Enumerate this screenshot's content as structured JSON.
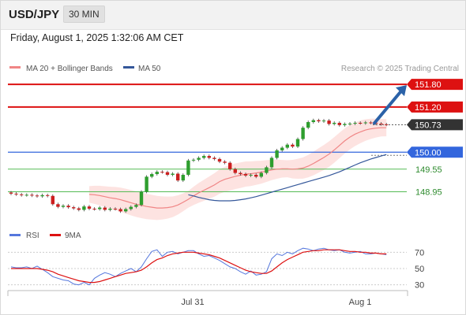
{
  "header": {
    "symbol": "USD/JPY",
    "timeframe": "30 MIN",
    "datetime": "Friday, August 1, 2025 1:32:06 AM CET"
  },
  "legend": {
    "ma20_label": "MA 20 + Bollinger Bands",
    "ma50_label": "MA 50",
    "copyright": "Research © 2025 Trading Central"
  },
  "colors": {
    "resistance": "#dd1111",
    "support_pivot": "#3366dd",
    "support": "#55bb55",
    "support_text": "#2e8b2e",
    "candle_up": "#2e9e2e",
    "candle_down": "#cc1f1f",
    "ma20": "#f08585",
    "ma50": "#34579a",
    "bollinger_fill": "#fde0de",
    "rsi": "#5577dd",
    "rsi_ma": "#dd1111",
    "arrow": "#2b62a8"
  },
  "chart_data": [
    {
      "type": "candlestick",
      "x_axis_labels": [
        "Jul 31",
        "Aug 1"
      ],
      "last_price": 150.73,
      "levels": [
        {
          "label": "151.80",
          "value": 151.8,
          "kind": "resistance"
        },
        {
          "label": "151.20",
          "value": 151.2,
          "kind": "resistance"
        },
        {
          "label": "150.73",
          "value": 150.73,
          "kind": "last"
        },
        {
          "label": "150.00",
          "value": 150.0,
          "kind": "pivot"
        },
        {
          "label": "149.55",
          "value": 149.55,
          "kind": "support"
        },
        {
          "label": "148.95",
          "value": 148.95,
          "kind": "support"
        }
      ],
      "close": [
        148.9,
        148.88,
        148.86,
        148.87,
        148.85,
        148.83,
        148.86,
        148.84,
        148.62,
        148.55,
        148.58,
        148.54,
        148.51,
        148.47,
        148.56,
        148.5,
        148.49,
        148.53,
        148.47,
        148.5,
        148.49,
        148.43,
        148.49,
        148.55,
        148.6,
        148.95,
        149.35,
        149.42,
        149.48,
        149.47,
        149.4,
        149.43,
        149.25,
        149.4,
        149.78,
        149.8,
        149.85,
        149.9,
        149.85,
        149.82,
        149.75,
        149.72,
        149.55,
        149.45,
        149.42,
        149.38,
        149.4,
        149.35,
        149.45,
        149.6,
        149.85,
        150.05,
        150.12,
        150.2,
        150.15,
        150.35,
        150.65,
        150.8,
        150.85,
        150.82,
        150.84,
        150.75,
        150.78,
        150.72,
        150.75,
        150.76,
        150.78,
        150.77,
        150.79,
        150.78,
        150.76,
        150.74,
        150.73
      ],
      "ma20": [
        148.88,
        148.87,
        148.85,
        148.82,
        148.79,
        148.77,
        148.74,
        148.7,
        148.66,
        148.62,
        148.59,
        148.56,
        148.54,
        148.52,
        148.52,
        148.53,
        148.55,
        148.6,
        148.67,
        148.75,
        148.84,
        148.92,
        148.99,
        149.06,
        149.13,
        149.22,
        149.28,
        149.32,
        149.36,
        149.39,
        149.42,
        149.43,
        149.45,
        149.47,
        149.5,
        149.53,
        149.55,
        149.56,
        149.56,
        149.55,
        149.56,
        149.58,
        149.63,
        149.7,
        149.78,
        149.86,
        149.95,
        150.06,
        150.18,
        150.3,
        150.4,
        150.48,
        150.54,
        150.59,
        150.62,
        150.64,
        150.65,
        150.65
      ],
      "ma50": [
        148.87,
        148.84,
        148.8,
        148.77,
        148.74,
        148.72,
        148.71,
        148.71,
        148.71,
        148.72,
        148.74,
        148.76,
        148.79,
        148.82,
        148.86,
        148.9,
        148.94,
        148.98,
        149.02,
        149.06,
        149.1,
        149.14,
        149.18,
        149.22,
        149.26,
        149.3,
        149.34,
        149.38,
        149.43,
        149.48,
        149.54,
        149.6,
        149.66,
        149.72,
        149.77,
        149.82,
        149.86,
        149.9,
        149.94
      ],
      "y_range": [
        148.25,
        151.95
      ]
    },
    {
      "type": "line",
      "legend": [
        "RSI",
        "9MA"
      ],
      "y_ticks": [
        70,
        50,
        30
      ],
      "y_range": [
        20,
        80
      ],
      "rsi": [
        52,
        51,
        51,
        52,
        50,
        53,
        49,
        45,
        40,
        38,
        36,
        35,
        31,
        30,
        33,
        30,
        38,
        42,
        45,
        43,
        40,
        44,
        47,
        50,
        46,
        52,
        62,
        71,
        73,
        65,
        70,
        71,
        68,
        70,
        72,
        72,
        68,
        65,
        66,
        63,
        60,
        56,
        52,
        50,
        46,
        43,
        47,
        42,
        43,
        46,
        62,
        68,
        66,
        70,
        68,
        72,
        75,
        74,
        72,
        74,
        75,
        73,
        72,
        73,
        70,
        69,
        70,
        71,
        68,
        68,
        69,
        68,
        67
      ],
      "rsi_ma": [
        50,
        50,
        50,
        50,
        50,
        50,
        49,
        48,
        46,
        43,
        41,
        39,
        37,
        35,
        34,
        33,
        33,
        34,
        36,
        38,
        40,
        42,
        44,
        45,
        46,
        48,
        52,
        57,
        61,
        63,
        66,
        68,
        69,
        70,
        70,
        70,
        69,
        68,
        67,
        65,
        63,
        60,
        57,
        54,
        51,
        48,
        46,
        45,
        44,
        44,
        47,
        52,
        57,
        61,
        64,
        67,
        70,
        71,
        72,
        72,
        73,
        73,
        73,
        73,
        72,
        71,
        71,
        70,
        70,
        69,
        69,
        68,
        68
      ]
    }
  ]
}
